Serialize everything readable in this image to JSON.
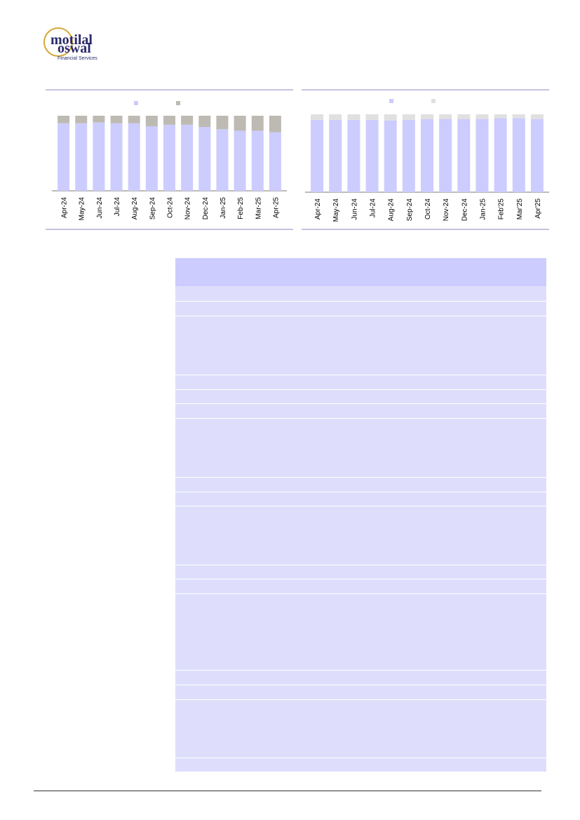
{
  "logo": {
    "line1": "motilal",
    "line2": "oswal",
    "line3": "Financial Services"
  },
  "chart_data": [
    {
      "type": "stacked-bar",
      "categories": [
        "Apr-24",
        "May-24",
        "Jun-24",
        "Jul-24",
        "Aug-24",
        "Sep-24",
        "Oct-24",
        "Nov-24",
        "Dec-24",
        "Jan-25",
        "Feb-25",
        "Mar-25",
        "Apr-25"
      ],
      "series": [
        {
          "color": "#ccccff",
          "values": [
            90,
            90,
            91,
            90,
            90,
            86,
            88,
            88,
            85,
            82,
            80,
            80,
            78
          ]
        },
        {
          "color": "#bdbab3",
          "values": [
            10,
            10,
            9,
            10,
            10,
            14,
            12,
            12,
            15,
            18,
            20,
            20,
            22
          ]
        }
      ],
      "ylim": [
        0,
        100
      ]
    },
    {
      "type": "stacked-bar",
      "categories": [
        "Apr-24",
        "May-24",
        "Jun-24",
        "Jul-24",
        "Aug-24",
        "Sep-24",
        "Oct-24",
        "Nov-24",
        "Dec-24",
        "Jan-25",
        "Feb'25",
        "Mar'25",
        "Apr'25"
      ],
      "series": [
        {
          "color": "#ccccff",
          "values": [
            93,
            93,
            93,
            93,
            92,
            93,
            94,
            94,
            94,
            94,
            95,
            95,
            94
          ]
        },
        {
          "color": "#e0e0e0",
          "values": [
            7,
            7,
            7,
            7,
            8,
            7,
            6,
            6,
            6,
            6,
            5,
            5,
            6
          ]
        }
      ],
      "ylim": [
        0,
        100
      ]
    }
  ]
}
